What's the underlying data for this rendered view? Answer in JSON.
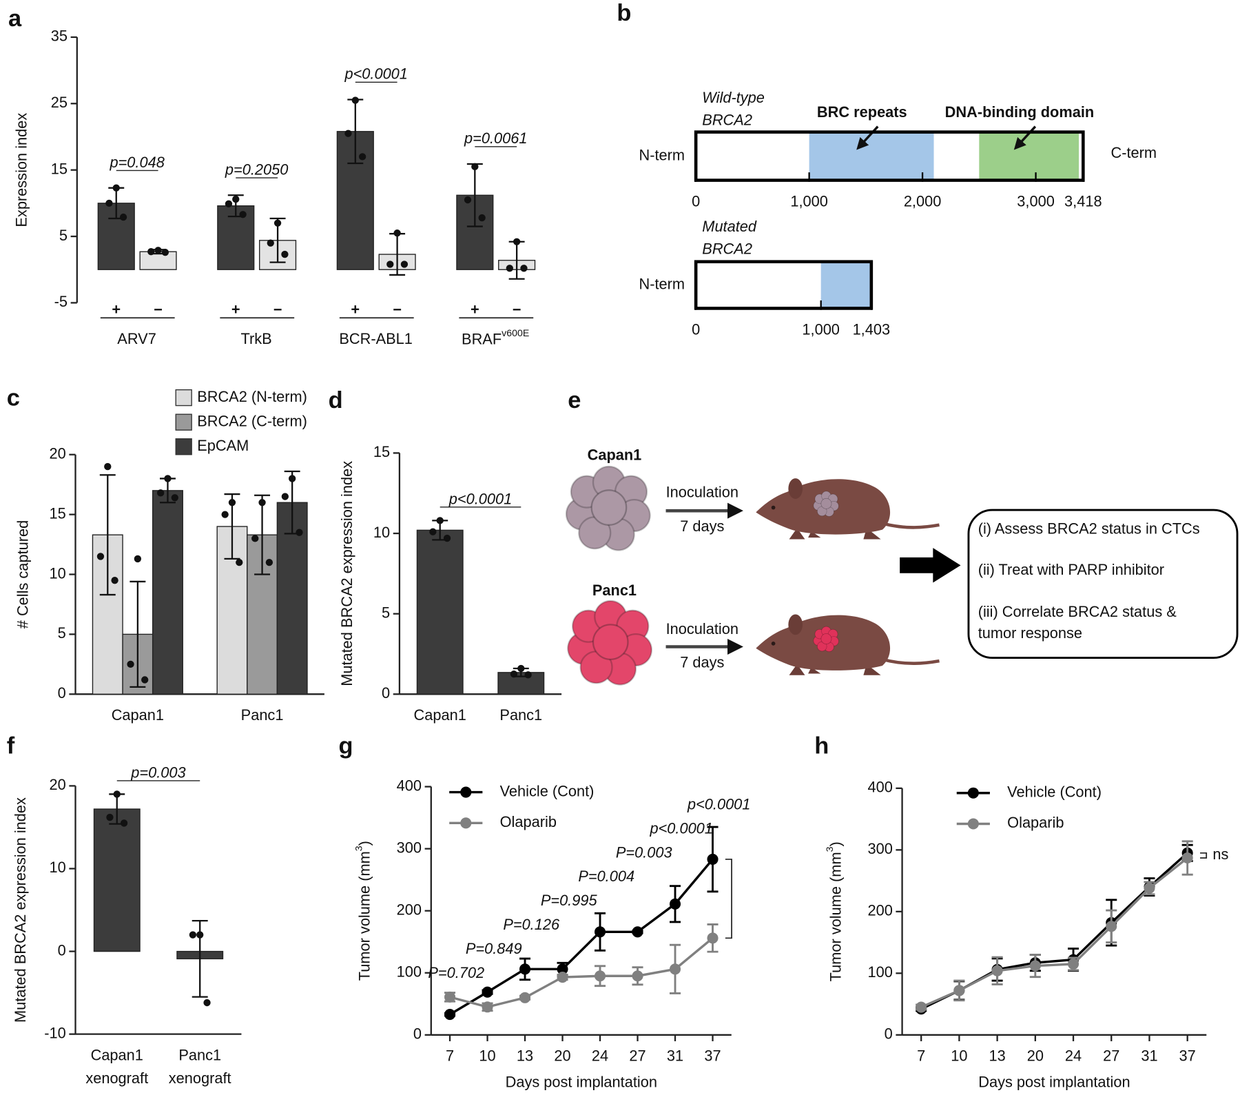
{
  "chart_data": [
    {
      "panel": "a",
      "type": "bar",
      "y_label": "Expression index",
      "categories": [
        "ARV7",
        "TrkB",
        "BCR-ABL1",
        {
          "text": "BRAF",
          "superscript": "v600E"
        }
      ],
      "series": [
        {
          "name": "+",
          "color": "#3c3c3c",
          "values": [
            10.0,
            9.6,
            20.8,
            11.2
          ],
          "errors": [
            2.3,
            1.6,
            4.8,
            4.7
          ],
          "points": [
            [
              12.3,
              10.0,
              7.9
            ],
            [
              10.6,
              9.9,
              8.3
            ],
            [
              25.5,
              20.5,
              17.0
            ],
            [
              15.5,
              10.5,
              7.8
            ]
          ]
        },
        {
          "name": "−",
          "color": "#e3e3e3",
          "values": [
            2.7,
            4.4,
            2.3,
            1.4
          ],
          "errors": [
            0.3,
            3.3,
            3.1,
            2.8
          ],
          "points": [
            [
              2.9,
              2.7,
              2.6
            ],
            [
              7.0,
              4.0,
              2.3
            ],
            [
              5.5,
              0.8,
              0.8
            ],
            [
              4.2,
              0.2,
              0.2
            ]
          ]
        }
      ],
      "annotations": [
        "p=0.048",
        "p=0.2050",
        "p<0.0001",
        "p=0.0061"
      ],
      "ylim": [
        -5,
        35
      ],
      "yticks": [
        -5,
        5,
        15,
        25,
        35
      ]
    },
    {
      "panel": "b",
      "type": "domains",
      "tracks": [
        {
          "label": [
            "Wild-type",
            "BRCA2"
          ],
          "start_label": "N-term",
          "end_label": "C-term",
          "xlim": [
            0,
            3418
          ],
          "xticks": [
            0,
            {
              "value": 1000,
              "label": "1,000"
            },
            {
              "value": 2000,
              "label": "2,000"
            },
            {
              "value": 3000,
              "label": "3,000"
            },
            {
              "value": 3418,
              "label": "3,418"
            }
          ],
          "domains": [
            {
              "name": "BRC repeats",
              "start": 1000,
              "end": 2100,
              "color": "#a4c6e8"
            },
            {
              "name": "DNA-binding domain",
              "start": 2500,
              "end": 3380,
              "color": "#9ccf8a"
            }
          ]
        },
        {
          "label": [
            "Mutated",
            "BRCA2"
          ],
          "start_label": "N-term",
          "xlim": [
            0,
            1403
          ],
          "xticks": [
            0,
            {
              "value": 1000,
              "label": "1,000"
            },
            {
              "value": 1403,
              "label": "1,403"
            }
          ],
          "domains": [
            {
              "start": 1000,
              "end": 1403,
              "color": "#a4c6e8"
            }
          ]
        }
      ]
    },
    {
      "panel": "c",
      "type": "bar",
      "y_label": "# Cells captured",
      "legend": "top",
      "categories": [
        "Capan1",
        "Panc1"
      ],
      "series": [
        {
          "name": "BRCA2 (N-term)",
          "color": "#dcdcdc",
          "values": [
            13.3,
            14.0
          ],
          "errors": [
            5.0,
            2.7
          ],
          "points": [
            [
              19.0,
              11.5,
              9.5
            ],
            [
              16.0,
              15.0,
              11.0
            ]
          ]
        },
        {
          "name": "BRCA2 (C-term)",
          "color": "#9a9a9a",
          "values": [
            5.0,
            13.3
          ],
          "errors": [
            4.4,
            3.3
          ],
          "points": [
            [
              11.3,
              2.5,
              1.2
            ],
            [
              16.0,
              13.0,
              11.0
            ]
          ]
        },
        {
          "name": "EpCAM",
          "color": "#3c3c3c",
          "values": [
            17.0,
            16.0
          ],
          "errors": [
            1.0,
            2.6
          ],
          "points": [
            [
              18.0,
              16.8,
              16.4
            ],
            [
              18.0,
              16.5,
              13.5
            ]
          ]
        }
      ],
      "ylim": [
        0,
        20
      ],
      "yticks": [
        0,
        5,
        10,
        15,
        20
      ]
    },
    {
      "panel": "d",
      "type": "bar",
      "y_label": "Mutated BRCA2 expression index",
      "categories": [
        "Capan1",
        "Panc1"
      ],
      "series": [
        {
          "color": "#3c3c3c",
          "values": [
            10.2,
            1.35
          ],
          "errors": [
            0.6,
            0.25
          ],
          "points": [
            [
              10.8,
              10.1,
              9.7
            ],
            [
              1.6,
              1.25,
              1.2
            ]
          ]
        }
      ],
      "annotations": [
        "p<0.0001"
      ],
      "ylim": [
        0,
        15
      ],
      "yticks": [
        0,
        5,
        10,
        15
      ]
    },
    {
      "panel": "f",
      "type": "bar",
      "y_label": "Mutated BRCA2 expression index",
      "categories": [
        [
          "Capan1",
          "xenograft"
        ],
        [
          "Panc1",
          "xenograft"
        ]
      ],
      "series": [
        {
          "color": "#3c3c3c",
          "values": [
            17.2,
            -0.9
          ],
          "errors": [
            1.8,
            4.6
          ],
          "points": [
            [
              19.0,
              16.2,
              15.5
            ],
            [
              2.0,
              2.0,
              -6.2
            ]
          ]
        }
      ],
      "annotations": [
        "p=0.003"
      ],
      "ylim": [
        -10,
        20
      ],
      "yticks": [
        -10,
        0,
        10,
        20
      ]
    },
    {
      "panel": "g",
      "type": "line",
      "y_label": {
        "text": "Tumor volume (mm",
        "superscript": "3",
        "after": ")"
      },
      "x_label": "Days post implantation",
      "legend": "top-left",
      "categories": [
        7,
        10,
        13,
        20,
        24,
        27,
        31,
        37
      ],
      "series": [
        {
          "name": "Vehicle (Cont)",
          "color": "#000000",
          "values": [
            33,
            69,
            106,
            106,
            166,
            166,
            211,
            283
          ],
          "errors": [
            2,
            3,
            17,
            10,
            30,
            2,
            29,
            52
          ]
        },
        {
          "name": "Olaparib",
          "color": "#808080",
          "values": [
            61,
            45,
            60,
            93,
            95,
            95,
            106,
            156
          ],
          "errors": [
            7,
            6,
            3,
            4,
            16,
            14,
            39,
            22
          ]
        }
      ],
      "annotations": [
        "P=0.702",
        "P=0.849",
        "P=0.126",
        "P=0.995",
        "P=0.004",
        "P=0.003",
        "p<0.0001",
        "p<0.0001"
      ],
      "bracket": true,
      "ylim": [
        0,
        400
      ],
      "yticks": [
        0,
        100,
        200,
        300,
        400
      ]
    },
    {
      "panel": "h",
      "type": "line",
      "y_label": {
        "text": "Tumor volume (mm",
        "superscript": "3",
        "after": ")"
      },
      "x_label": "Days post implantation",
      "legend": "top-left",
      "categories": [
        7,
        10,
        13,
        20,
        24,
        27,
        31,
        37
      ],
      "series": [
        {
          "name": "Vehicle (Cont)",
          "color": "#000000",
          "values": [
            42,
            72,
            106,
            117,
            122,
            182,
            240,
            295
          ],
          "errors": [
            3,
            15,
            18,
            13,
            18,
            37,
            14,
            13
          ]
        },
        {
          "name": "Olaparib",
          "color": "#808080",
          "values": [
            45,
            72,
            104,
            112,
            115,
            176,
            238,
            287
          ],
          "errors": [
            4,
            16,
            22,
            18,
            10,
            26,
            10,
            27
          ]
        }
      ],
      "bracket": true,
      "bracket_label": "ns",
      "ylim": [
        0,
        400
      ],
      "yticks": [
        0,
        100,
        200,
        300,
        400
      ]
    }
  ],
  "diagram": {
    "panel": "e",
    "groups": [
      {
        "name": "Capan1",
        "step": "Inoculation",
        "duration": "7 days"
      },
      {
        "name": "Panc1",
        "step": "Inoculation",
        "duration": "7 days"
      }
    ],
    "outcomes": [
      [
        "(i) Assess BRCA2 status in CTCs"
      ],
      [
        "(ii) Treat with PARP inhibitor"
      ],
      [
        "(iii) Correlate BRCA2 status &",
        "tumor response"
      ]
    ]
  }
}
